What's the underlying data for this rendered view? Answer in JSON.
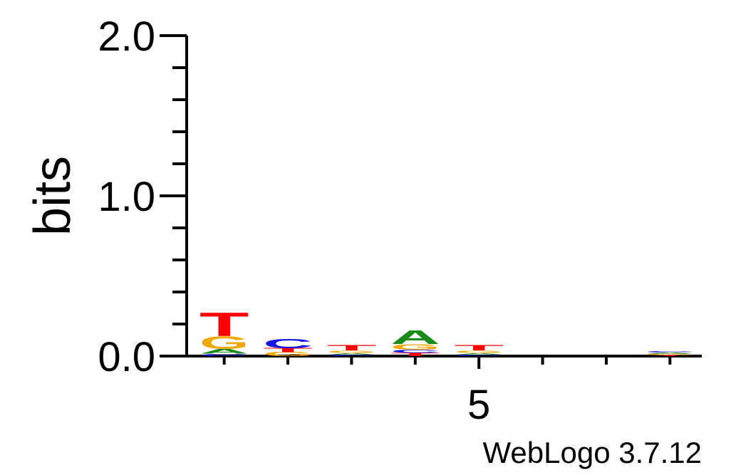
{
  "chart_data": {
    "type": "sequence-logo",
    "ylabel": "bits",
    "ylim": [
      0,
      2
    ],
    "y_ticks": [
      {
        "value": 0,
        "label": "0.0"
      },
      {
        "value": 1,
        "label": "1.0"
      },
      {
        "value": 2,
        "label": "2.0"
      }
    ],
    "x_ticks": [
      {
        "position": 5,
        "label": "5"
      }
    ],
    "positions": [
      1,
      2,
      3,
      4,
      5,
      6,
      7,
      8
    ],
    "colors": {
      "A": "#1a8a1a",
      "C": "#1515e6",
      "G": "#f0a800",
      "T": "#ff0000"
    },
    "stacks": [
      [
        {
          "letter": "C",
          "bits": 0.015
        },
        {
          "letter": "A",
          "bits": 0.03
        },
        {
          "letter": "G",
          "bits": 0.08
        },
        {
          "letter": "T",
          "bits": 0.15
        }
      ],
      [
        {
          "letter": "G",
          "bits": 0.025
        },
        {
          "letter": "T",
          "bits": 0.025
        },
        {
          "letter": "C",
          "bits": 0.06
        }
      ],
      [
        {
          "letter": "C",
          "bits": 0.01
        },
        {
          "letter": "A",
          "bits": 0.01
        },
        {
          "letter": "G",
          "bits": 0.015
        },
        {
          "letter": "T",
          "bits": 0.035
        }
      ],
      [
        {
          "letter": "T",
          "bits": 0.02
        },
        {
          "letter": "C",
          "bits": 0.02
        },
        {
          "letter": "G",
          "bits": 0.035
        },
        {
          "letter": "A",
          "bits": 0.09
        }
      ],
      [
        {
          "letter": "C",
          "bits": 0.01
        },
        {
          "letter": "A",
          "bits": 0.01
        },
        {
          "letter": "G",
          "bits": 0.015
        },
        {
          "letter": "T",
          "bits": 0.035
        }
      ],
      [],
      [],
      [
        {
          "letter": "T",
          "bits": 0.006
        },
        {
          "letter": "G",
          "bits": 0.008
        },
        {
          "letter": "A",
          "bits": 0.008
        },
        {
          "letter": "C",
          "bits": 0.01
        }
      ]
    ]
  },
  "credit": "WebLogo 3.7.12"
}
